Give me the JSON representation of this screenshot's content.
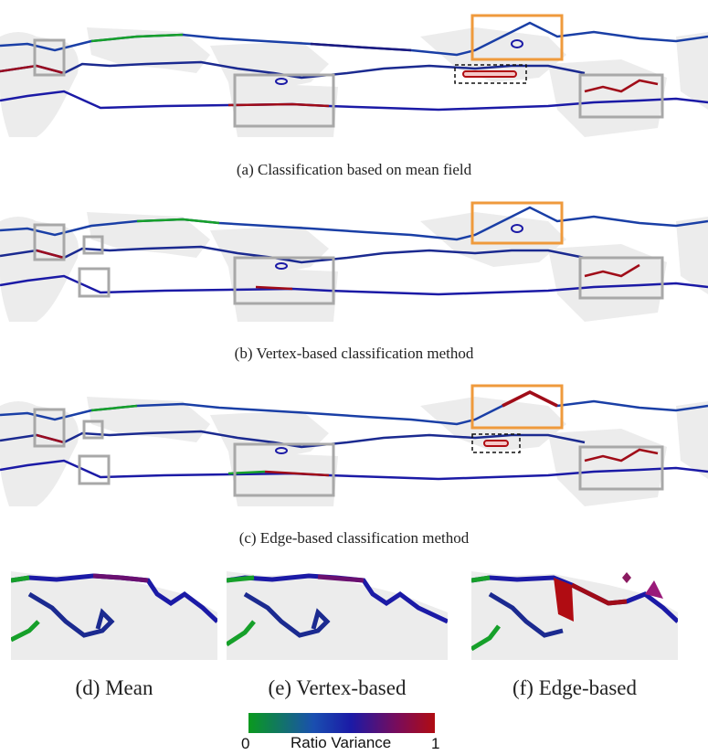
{
  "figure": {
    "captions": {
      "a": "(a) Classification based on mean field",
      "b": "(b) Vertex-based classification method",
      "c": "(c) Edge-based classification method"
    },
    "zoom_captions": {
      "d": "(d) Mean",
      "e": "(e) Vertex-based",
      "f": "(f) Edge-based"
    },
    "colorbar": {
      "min_label": "0",
      "title": "Ratio Variance",
      "max_label": "1",
      "colors": [
        "#0a9a1e",
        "#1a4fb0",
        "#1b1aa6",
        "#7a0c5a",
        "#b00c12"
      ]
    },
    "highlight_colors": {
      "orange_box": "#ef9a3c",
      "gray_box": "#a8a8a8",
      "dashed_box": "#111111"
    }
  }
}
